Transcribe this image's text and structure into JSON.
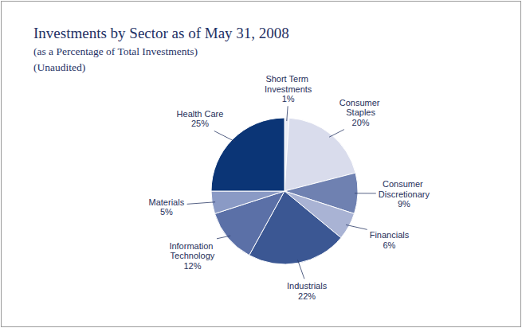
{
  "chart_data": {
    "type": "pie",
    "title": "Investments by Sector as of May 31, 2008",
    "subtitle": "(as a Percentage of Total Investments)",
    "annotations": [
      "(Unaudited)"
    ],
    "categories": [
      "Short Term Investments",
      "Consumer Staples",
      "Consumer Discretionary",
      "Financials",
      "Industrials",
      "Information Technology",
      "Materials",
      "Health Care"
    ],
    "values": [
      1,
      20,
      9,
      6,
      22,
      12,
      5,
      25
    ],
    "value_labels": [
      "1%",
      "20%",
      "9%",
      "6%",
      "22%",
      "12%",
      "5%",
      "25%"
    ],
    "colors": [
      "#eceef6",
      "#d9dcec",
      "#6f81b1",
      "#a9b3d4",
      "#3b5793",
      "#5b70a7",
      "#8a9ac5",
      "#0b3576"
    ],
    "data_labels": true
  }
}
